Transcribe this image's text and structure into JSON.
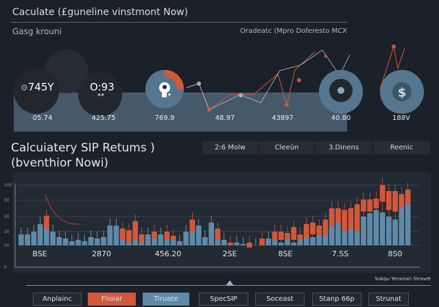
{
  "header": {
    "title": "Caculate (£guneline vinstmont Now)",
    "left_sub": "Gasg krouni",
    "right_sub": "Oradeatc (Mpro Doferesto MCX"
  },
  "widgets": [
    {
      "main": "745Y",
      "icon": "gear-icon",
      "value": "05.74"
    },
    {
      "main": "O:93",
      "sub": "**",
      "value": "425.75"
    },
    {
      "icon": "key-gauge-icon",
      "value": "769.9"
    },
    {
      "value": "48.97"
    },
    {
      "value": "43897"
    },
    {
      "icon": "target-icon",
      "value": "40.80"
    },
    {
      "icon": "dollar-icon",
      "value": "188V"
    }
  ],
  "section": {
    "title_line1": "Calcuiatery SIP Retums )",
    "title_line2": "(bventhior Nowi)"
  },
  "tabs": [
    "2:6 Molw",
    "Cleeün",
    "3.Dinens",
    "Reenic"
  ],
  "colors": {
    "accent": "#d4573a",
    "blue": "#5f8aa8",
    "bg": "#1b2129"
  },
  "chart_data": {
    "type": "bar",
    "y_ticks": [
      "100",
      "50",
      "30",
      "20",
      "10",
      "0"
    ],
    "x_labels": [
      "BSE",
      "2870",
      "456.20",
      "2SE",
      "8SE",
      "7.SS",
      "8S0"
    ],
    "grid": true,
    "bars": [
      [
        18,
        0,
        0
      ],
      [
        18,
        0,
        0
      ],
      [
        20,
        0,
        0
      ],
      [
        25,
        0,
        0
      ],
      [
        22,
        22,
        31
      ],
      [
        20,
        0,
        0
      ],
      [
        16,
        0,
        0
      ],
      [
        15,
        0,
        0
      ],
      [
        13,
        0,
        0
      ],
      [
        14,
        0,
        0
      ],
      [
        13,
        0,
        0
      ],
      [
        16,
        0,
        0
      ],
      [
        15,
        0,
        0
      ],
      [
        16,
        0,
        0
      ],
      [
        24,
        0,
        0
      ],
      [
        24,
        0,
        0
      ],
      [
        22,
        14,
        22
      ],
      [
        12,
        12,
        21
      ],
      [
        14,
        14,
        27
      ],
      [
        12,
        12,
        18
      ],
      [
        18,
        0,
        0
      ],
      [
        15,
        15,
        20
      ],
      [
        18,
        0,
        0
      ],
      [
        14,
        14,
        20
      ],
      [
        14,
        14,
        17
      ],
      [
        13,
        0,
        0
      ],
      [
        20,
        0,
        0
      ],
      [
        28,
        20,
        28
      ],
      [
        24,
        0,
        0
      ],
      [
        16,
        0,
        0
      ],
      [
        26,
        0,
        0
      ],
      [
        18,
        14,
        22
      ],
      [
        14,
        0,
        0
      ],
      [
        12,
        10,
        12
      ],
      [
        12,
        0,
        0
      ],
      [
        11,
        0,
        0
      ],
      [
        12,
        9,
        12
      ],
      [
        10,
        0,
        0
      ],
      [
        12,
        10,
        15
      ],
      [
        15,
        0,
        0
      ],
      [
        14,
        14,
        20
      ],
      [
        12,
        14,
        20
      ],
      [
        14,
        14,
        19
      ],
      [
        12,
        14,
        23
      ],
      [
        16,
        14,
        18
      ],
      [
        18,
        16,
        25
      ],
      [
        16,
        18,
        26
      ],
      [
        17,
        17,
        24
      ],
      [
        18,
        18,
        28
      ],
      [
        24,
        24,
        40
      ],
      [
        30,
        26,
        40
      ],
      [
        20,
        20,
        38
      ],
      [
        22,
        22,
        40
      ],
      [
        20,
        20,
        45
      ],
      [
        30,
        36,
        52
      ],
      [
        34,
        36,
        52
      ],
      [
        38,
        40,
        55
      ],
      [
        35,
        48,
        100
      ],
      [
        30,
        38,
        80
      ],
      [
        28,
        36,
        80
      ],
      [
        42,
        40,
        70
      ],
      [
        45,
        45,
        85
      ]
    ]
  },
  "legend_text": "Sokqu Yeranian Stravet",
  "bottom_buttons": [
    "Anplainc",
    "Flioiar",
    "Tiruate",
    "SpecSIP",
    "Soceast",
    "Stanp 66p",
    "Strunat"
  ]
}
